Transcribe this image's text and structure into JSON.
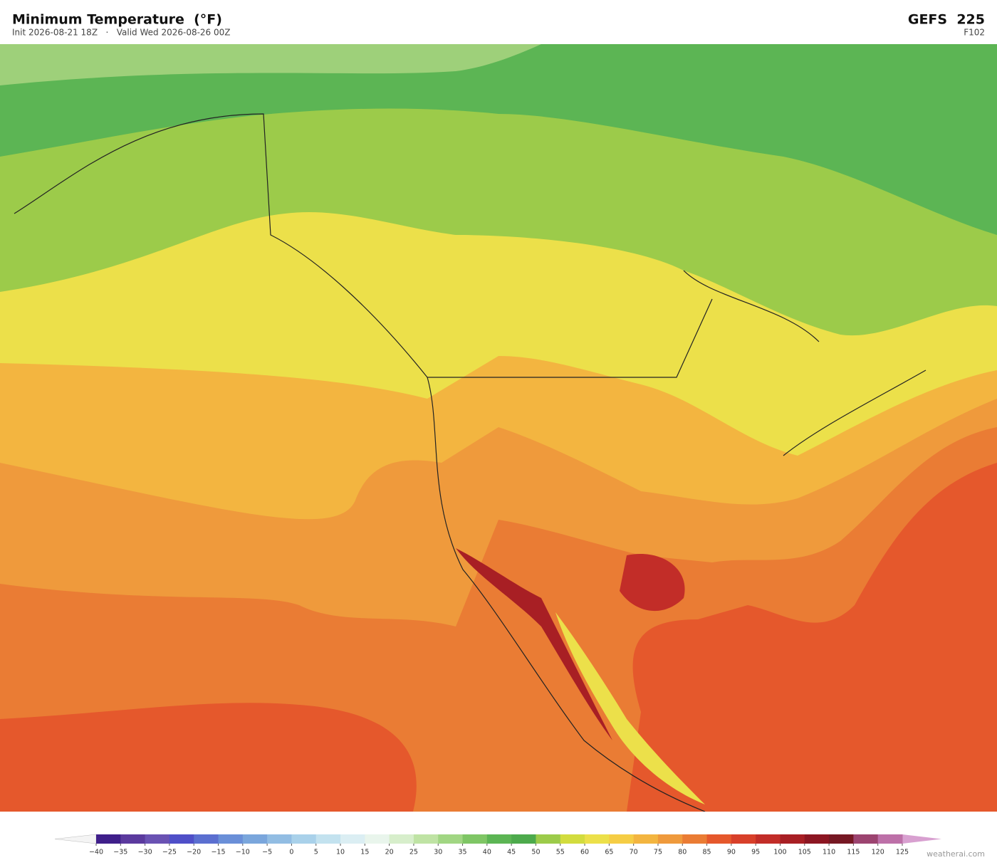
{
  "header": {
    "title": "Minimum Temperature  (°F)",
    "subtitle": "Init 2026-08-21 18Z   ·   Valid Wed 2026-08-26 00Z",
    "model": "GEFS  225",
    "forecast_hour": "F102"
  },
  "colorbar": {
    "ticks": [
      {
        "value": -40,
        "label": "−40"
      },
      {
        "value": -35,
        "label": "−35"
      },
      {
        "value": -30,
        "label": "−30"
      },
      {
        "value": -25,
        "label": "−25"
      },
      {
        "value": -20,
        "label": "−20"
      },
      {
        "value": -15,
        "label": "−15"
      },
      {
        "value": -10,
        "label": "−10"
      },
      {
        "value": -5,
        "label": "−5"
      },
      0,
      5,
      10,
      15,
      20,
      25,
      30,
      35,
      40,
      45,
      50,
      55,
      60,
      65,
      70,
      75,
      80,
      85,
      90,
      95,
      100,
      105,
      110,
      115,
      120,
      125
    ],
    "colors": [
      "#3f1f8a",
      "#5b3a9e",
      "#6a52b3",
      "#4f4fc8",
      "#5b6fd0",
      "#6a8fd8",
      "#7aa6dc",
      "#92bde3",
      "#a9d1ea",
      "#c3e2ef",
      "#dbeef3",
      "#e9f5ec",
      "#d7eecb",
      "#bfe3a4",
      "#a1d683",
      "#7fc665",
      "#5cb554",
      "#4daa4c",
      "#9ccb4a",
      "#d2dc3e",
      "#ece04a",
      "#f5cd45",
      "#f3b540",
      "#ef9a3c",
      "#ea7c34",
      "#e5582c",
      "#d8402a",
      "#c22d28",
      "#a81f24",
      "#8c1622",
      "#761823",
      "#9c4470",
      "#bd70a8",
      "#d8a0d0"
    ],
    "extend_colors": [
      "#f4f4f4",
      "#d8a0d0"
    ]
  },
  "credit": "weatherai.com"
}
